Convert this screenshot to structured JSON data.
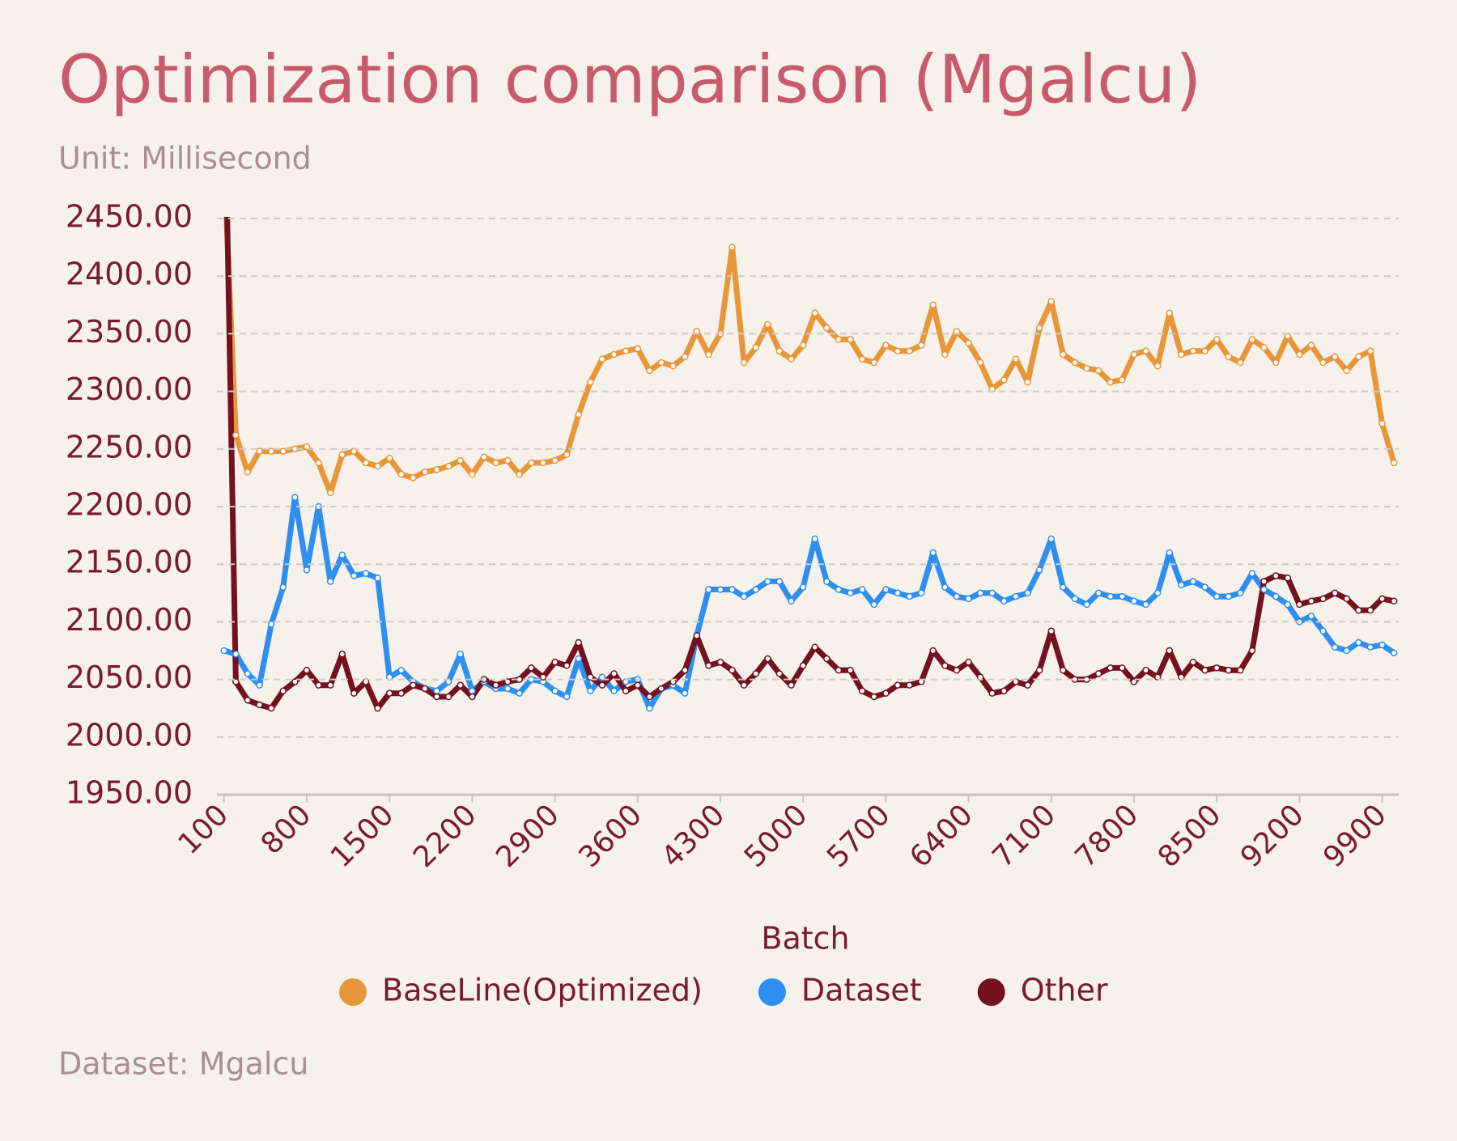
{
  "chart_data": {
    "type": "line",
    "title": "Optimization comparison (Mgalcu)",
    "subtitle": "Unit: Millisecond",
    "x_label": "Batch",
    "footer": "Dataset: Mgalcu",
    "x": [
      100,
      200,
      300,
      400,
      500,
      600,
      700,
      800,
      900,
      1000,
      1100,
      1200,
      1300,
      1400,
      1500,
      1600,
      1700,
      1800,
      1900,
      2000,
      2100,
      2200,
      2300,
      2400,
      2500,
      2600,
      2700,
      2800,
      2900,
      3000,
      3100,
      3200,
      3300,
      3400,
      3500,
      3600,
      3700,
      3800,
      3900,
      4000,
      4100,
      4200,
      4300,
      4400,
      4500,
      4600,
      4700,
      4800,
      4900,
      5000,
      5100,
      5200,
      5300,
      5400,
      5500,
      5600,
      5700,
      5800,
      5900,
      6000,
      6100,
      6200,
      6300,
      6400,
      6500,
      6600,
      6700,
      6800,
      6900,
      7000,
      7100,
      7200,
      7300,
      7400,
      7500,
      7600,
      7700,
      7800,
      7900,
      8000,
      8100,
      8200,
      8300,
      8400,
      8500,
      8600,
      8700,
      8800,
      8900,
      9000,
      9100,
      9200,
      9300,
      9400,
      9500,
      9600,
      9700,
      9800,
      9900,
      10000
    ],
    "series": [
      {
        "name": "BaseLine(Optimized)",
        "color": "#e8963a",
        "values": [
          2500,
          2262,
          2230,
          2248,
          2248,
          2248,
          2250,
          2252,
          2238,
          2212,
          2245,
          2248,
          2238,
          2235,
          2242,
          2228,
          2225,
          2230,
          2232,
          2235,
          2240,
          2228,
          2243,
          2238,
          2240,
          2228,
          2238,
          2238,
          2240,
          2245,
          2280,
          2308,
          2328,
          2332,
          2335,
          2337,
          2318,
          2325,
          2322,
          2330,
          2352,
          2332,
          2350,
          2425,
          2325,
          2338,
          2358,
          2335,
          2328,
          2340,
          2368,
          2355,
          2345,
          2345,
          2328,
          2325,
          2340,
          2335,
          2335,
          2340,
          2375,
          2332,
          2352,
          2342,
          2325,
          2302,
          2310,
          2328,
          2308,
          2355,
          2378,
          2332,
          2325,
          2320,
          2318,
          2308,
          2310,
          2332,
          2335,
          2322,
          2368,
          2332,
          2335,
          2335,
          2345,
          2330,
          2325,
          2345,
          2338,
          2325,
          2348,
          2332,
          2340,
          2325,
          2330,
          2318,
          2330,
          2335,
          2272,
          2238
        ]
      },
      {
        "name": "Dataset",
        "color": "#2e8ff0",
        "values": [
          2075,
          2072,
          2055,
          2045,
          2098,
          2130,
          2208,
          2145,
          2200,
          2135,
          2158,
          2140,
          2142,
          2138,
          2052,
          2058,
          2048,
          2042,
          2040,
          2048,
          2072,
          2040,
          2048,
          2042,
          2042,
          2038,
          2050,
          2048,
          2040,
          2035,
          2068,
          2040,
          2052,
          2040,
          2048,
          2050,
          2025,
          2042,
          2045,
          2038,
          2088,
          2128,
          2128,
          2128,
          2122,
          2128,
          2135,
          2135,
          2118,
          2130,
          2172,
          2135,
          2128,
          2125,
          2128,
          2115,
          2128,
          2125,
          2122,
          2125,
          2160,
          2130,
          2122,
          2120,
          2125,
          2125,
          2118,
          2122,
          2125,
          2145,
          2172,
          2130,
          2120,
          2115,
          2125,
          2122,
          2122,
          2118,
          2115,
          2125,
          2160,
          2132,
          2135,
          2130,
          2122,
          2122,
          2125,
          2142,
          2128,
          2122,
          2115,
          2100,
          2105,
          2092,
          2078,
          2075,
          2082,
          2078,
          2080,
          2073
        ]
      },
      {
        "name": "Other",
        "color": "#74101f",
        "values": [
          2600,
          2048,
          2032,
          2028,
          2025,
          2040,
          2048,
          2058,
          2045,
          2045,
          2072,
          2038,
          2048,
          2025,
          2038,
          2038,
          2045,
          2042,
          2035,
          2035,
          2045,
          2035,
          2050,
          2045,
          2048,
          2050,
          2060,
          2052,
          2065,
          2062,
          2082,
          2052,
          2045,
          2055,
          2040,
          2045,
          2035,
          2042,
          2048,
          2058,
          2088,
          2062,
          2065,
          2058,
          2045,
          2055,
          2068,
          2055,
          2045,
          2062,
          2078,
          2068,
          2058,
          2058,
          2040,
          2035,
          2038,
          2045,
          2045,
          2048,
          2075,
          2062,
          2058,
          2065,
          2052,
          2038,
          2040,
          2048,
          2045,
          2058,
          2092,
          2058,
          2050,
          2050,
          2055,
          2060,
          2060,
          2048,
          2058,
          2052,
          2075,
          2052,
          2065,
          2058,
          2060,
          2058,
          2058,
          2075,
          2135,
          2140,
          2138,
          2115,
          2118,
          2120,
          2125,
          2120,
          2110,
          2110,
          2120,
          2118
        ]
      }
    ],
    "xlim": [
      40,
      10040
    ],
    "xticks": [
      100,
      800,
      1500,
      2200,
      2900,
      3600,
      4300,
      5000,
      5700,
      6400,
      7100,
      7800,
      8500,
      9200,
      9900
    ],
    "ylim": [
      1950,
      2450
    ],
    "yticks": [
      {
        "value": 1950,
        "label": "1950.00"
      },
      {
        "value": 2000,
        "label": "2000.00"
      },
      {
        "value": 2050,
        "label": "2050.00"
      },
      {
        "value": 2100,
        "label": "2100.00"
      },
      {
        "value": 2150,
        "label": "2150.00"
      },
      {
        "value": 2200,
        "label": "2200.00"
      },
      {
        "value": 2250,
        "label": "2250.00"
      },
      {
        "value": 2300,
        "label": "2300.00"
      },
      {
        "value": 2350,
        "label": "2350.00"
      },
      {
        "value": 2400,
        "label": "2400.00"
      },
      {
        "value": 2450,
        "label": "2450.00"
      }
    ],
    "grid": true,
    "legend": "bottom"
  }
}
